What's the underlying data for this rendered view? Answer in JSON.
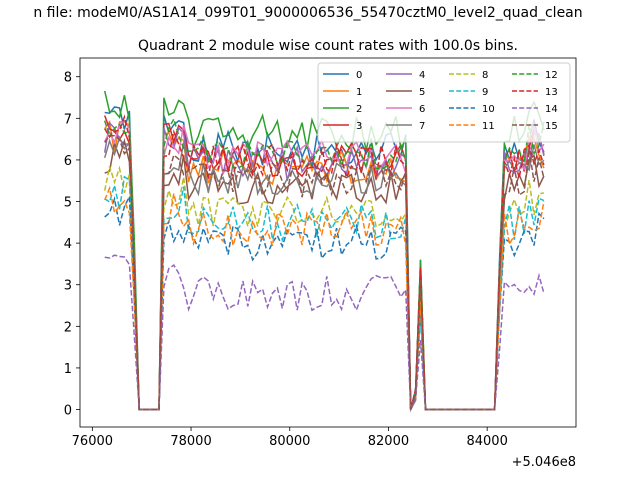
{
  "chart_data": {
    "type": "line",
    "suptitle": "n file: modeM0/AS1A14_099T01_9000006536_55470cztM0_level2_quad_clean",
    "title": "Quadrant 2 module wise count rates with 100.0s bins.",
    "xlabel": "",
    "ylabel": "",
    "x_offset_label": "+5.046e8",
    "xlim": [
      75750,
      85800
    ],
    "ylim": [
      -0.42,
      8.45
    ],
    "x_ticks": [
      76000,
      78000,
      80000,
      82000,
      84000
    ],
    "x_tick_labels": [
      "76000",
      "78000",
      "80000",
      "82000",
      "84000"
    ],
    "y_ticks": [
      0,
      1,
      2,
      3,
      4,
      5,
      6,
      7,
      8
    ],
    "y_tick_labels": [
      "0",
      "1",
      "2",
      "3",
      "4",
      "5",
      "6",
      "7",
      "8"
    ],
    "legend_position": "top-right",
    "legend_columns": 4,
    "gti_windows": [
      [
        76250,
        76850
      ],
      [
        77450,
        82350
      ],
      [
        82550,
        82650
      ],
      [
        84250,
        85150
      ]
    ],
    "bin_seconds": 100,
    "series": [
      {
        "name": "0",
        "color": "#1f77b4",
        "dash": "solid",
        "level": 6.25
      },
      {
        "name": "1",
        "color": "#ff7f0e",
        "dash": "solid",
        "level": 5.8
      },
      {
        "name": "2",
        "color": "#2ca02c",
        "dash": "solid",
        "level": 6.65
      },
      {
        "name": "3",
        "color": "#d62728",
        "dash": "solid",
        "level": 6.0
      },
      {
        "name": "4",
        "color": "#9467bd",
        "dash": "solid",
        "level": 5.9
      },
      {
        "name": "5",
        "color": "#8c564b",
        "dash": "solid",
        "level": 5.35
      },
      {
        "name": "6",
        "color": "#e377c2",
        "dash": "solid",
        "level": 6.05
      },
      {
        "name": "7",
        "color": "#7f7f7f",
        "dash": "solid",
        "level": 5.6
      },
      {
        "name": "8",
        "color": "#bcbd22",
        "dash": "dashed",
        "level": 4.75
      },
      {
        "name": "9",
        "color": "#17becf",
        "dash": "dashed",
        "level": 4.5
      },
      {
        "name": "10",
        "color": "#1f77b4",
        "dash": "dashed",
        "level": 4.0
      },
      {
        "name": "11",
        "color": "#ff7f0e",
        "dash": "dashed",
        "level": 4.35
      },
      {
        "name": "12",
        "color": "#2ca02c",
        "dash": "dashed",
        "level": 6.2
      },
      {
        "name": "13",
        "color": "#d62728",
        "dash": "dashed",
        "level": 5.95
      },
      {
        "name": "14",
        "color": "#9467bd",
        "dash": "dashed",
        "level": 2.8
      },
      {
        "name": "15",
        "color": "#8c564b",
        "dash": "dashed",
        "level": 5.5
      }
    ]
  }
}
